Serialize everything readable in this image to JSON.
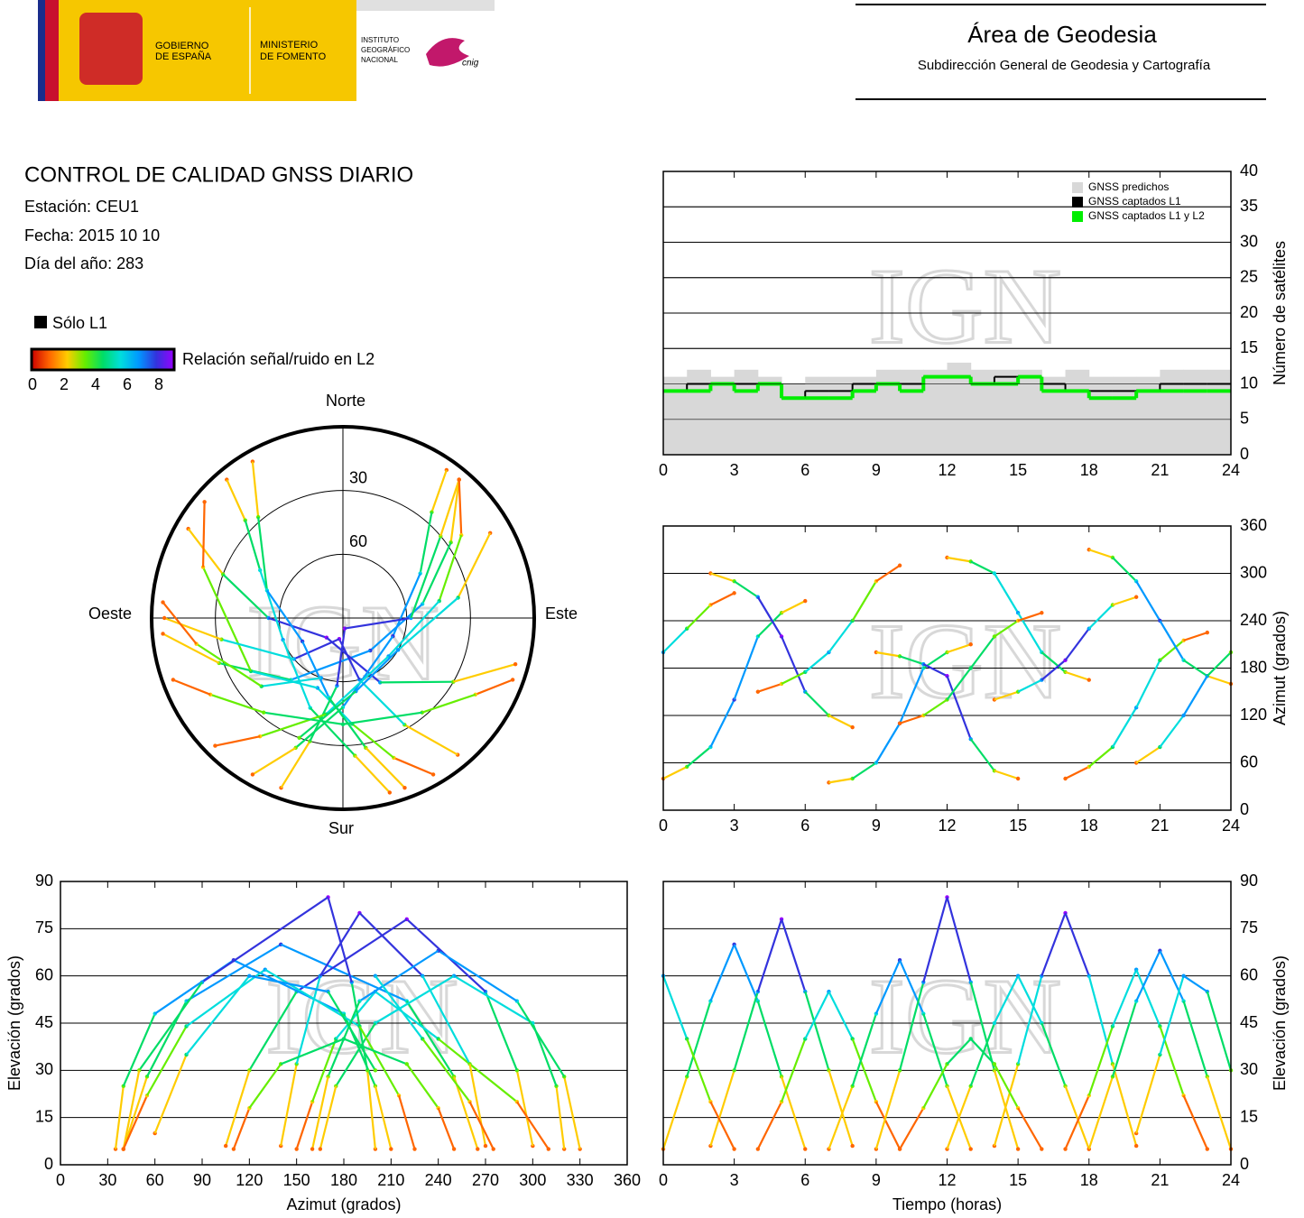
{
  "header": {
    "gov": [
      "GOBIERNO",
      "DE ESPAÑA"
    ],
    "ministry": [
      "MINISTERIO",
      "DE FOMENTO"
    ],
    "institute": [
      "INSTITUTO",
      "GEOGRÁFICO",
      "NACIONAL"
    ],
    "cnig": "cnig",
    "title": "Área de Geodesia",
    "subtitle": "Subdirección General de Geodesia y Cartografía"
  },
  "report": {
    "title": "CONTROL DE CALIDAD GNSS DIARIO",
    "lines": [
      "Estación: CEU1",
      "Fecha: 2015 10 10",
      "Día del año: 283"
    ]
  },
  "legend": {
    "l1_only": "Sólo L1",
    "l1_only_color": "#000000",
    "colorbar_label": "Relación señal/ruido en L2",
    "colorbar_lim": [
      0,
      8
    ],
    "colorbar_ticks": [
      0,
      2,
      4,
      6,
      8
    ],
    "colormap": [
      "#cc0000",
      "#ff6600",
      "#ffcc00",
      "#66ee00",
      "#00dd66",
      "#00dddd",
      "#0099ff",
      "#3333dd",
      "#9900ff"
    ]
  },
  "watermark": "IGN",
  "chart_data": [
    {
      "type": "step",
      "ylabel": "Número de satélites",
      "x": [
        0,
        1,
        2,
        3,
        4,
        5,
        6,
        7,
        8,
        9,
        10,
        11,
        12,
        13,
        14,
        15,
        16,
        17,
        18,
        19,
        20,
        21,
        22,
        23
      ],
      "xlim": [
        0,
        24
      ],
      "xticks": [
        0,
        3,
        6,
        9,
        12,
        15,
        18,
        21,
        24
      ],
      "ylim": [
        0,
        40
      ],
      "yticks": [
        0,
        5,
        10,
        15,
        20,
        25,
        30,
        35,
        40
      ],
      "grid": true,
      "legend": "upper right",
      "series": [
        {
          "name": "GNSS predichos",
          "color": "#d8d8d8",
          "values": [
            11,
            12,
            11,
            12,
            11,
            10,
            11,
            11,
            11,
            12,
            12,
            12,
            13,
            12,
            12,
            12,
            11,
            12,
            11,
            11,
            11,
            12,
            12,
            12
          ]
        },
        {
          "name": "GNSS captados L1",
          "color": "#000000",
          "values": [
            9,
            10,
            10,
            10,
            10,
            8,
            9,
            9,
            10,
            10,
            10,
            11,
            11,
            10,
            11,
            11,
            10,
            9,
            9,
            9,
            9,
            10,
            10,
            10
          ]
        },
        {
          "name": "GNSS captados L1 y L2",
          "color": "#00ee00",
          "values": [
            9,
            9,
            10,
            9,
            10,
            8,
            8,
            8,
            9,
            10,
            9,
            11,
            11,
            10,
            10,
            11,
            9,
            9,
            8,
            8,
            9,
            9,
            9,
            9
          ]
        }
      ]
    },
    {
      "type": "polar",
      "labels": {
        "north": "Norte",
        "south": "Sur",
        "east": "Este",
        "west": "Oeste"
      },
      "rlim": [
        90,
        0
      ],
      "rticks": [
        30,
        60
      ],
      "tracks": [
        {
          "t": [
            0,
            1,
            2,
            3,
            4,
            5,
            6
          ],
          "az": [
            40,
            55,
            80,
            140,
            220,
            250,
            265
          ],
          "el": [
            5,
            28,
            52,
            70,
            52,
            28,
            5
          ],
          "snr": [
            0.5,
            2.8,
            5.2,
            7,
            5.2,
            2.8,
            0.5
          ]
        },
        {
          "t": [
            2,
            3,
            4,
            5,
            6,
            7,
            8
          ],
          "az": [
            300,
            290,
            270,
            220,
            150,
            120,
            105
          ],
          "el": [
            6,
            30,
            55,
            78,
            55,
            30,
            6
          ],
          "snr": [
            0.6,
            3,
            5.5,
            7.8,
            5.5,
            3,
            0.6
          ]
        },
        {
          "t": [
            4,
            5,
            6,
            7,
            8,
            9,
            10
          ],
          "az": [
            150,
            160,
            175,
            200,
            240,
            290,
            310
          ],
          "el": [
            5,
            20,
            40,
            55,
            40,
            20,
            5
          ],
          "snr": [
            0.5,
            2,
            4,
            5.5,
            4,
            2,
            0.5
          ]
        },
        {
          "t": [
            7,
            8,
            9,
            10,
            11,
            12,
            13
          ],
          "az": [
            35,
            40,
            60,
            110,
            180,
            200,
            210
          ],
          "el": [
            5,
            25,
            48,
            65,
            48,
            25,
            5
          ],
          "snr": [
            0.5,
            2.5,
            4.8,
            6.5,
            4.8,
            2.5,
            0.5
          ]
        },
        {
          "t": [
            9,
            10,
            11,
            12,
            13,
            14,
            15
          ],
          "az": [
            200,
            195,
            185,
            170,
            90,
            50,
            40
          ],
          "el": [
            5,
            30,
            58,
            85,
            58,
            30,
            5
          ],
          "snr": [
            0.5,
            3,
            5.8,
            8.5,
            5.8,
            3,
            0.5
          ]
        },
        {
          "t": [
            12,
            13,
            14,
            15,
            16,
            17,
            18
          ],
          "az": [
            320,
            315,
            300,
            250,
            200,
            175,
            165
          ],
          "el": [
            5,
            25,
            45,
            60,
            45,
            25,
            5
          ],
          "snr": [
            0.5,
            2.5,
            4.5,
            6,
            4.5,
            2.5,
            0.5
          ]
        },
        {
          "t": [
            14,
            15,
            16,
            17,
            18,
            19,
            20
          ],
          "az": [
            140,
            150,
            165,
            190,
            230,
            260,
            270
          ],
          "el": [
            6,
            32,
            60,
            80,
            60,
            32,
            6
          ],
          "snr": [
            0.6,
            3.2,
            6,
            8,
            6,
            3.2,
            0.6
          ]
        },
        {
          "t": [
            17,
            18,
            19,
            20,
            21,
            22,
            23
          ],
          "az": [
            40,
            55,
            80,
            130,
            190,
            215,
            225
          ],
          "el": [
            5,
            22,
            44,
            62,
            44,
            22,
            5
          ],
          "snr": [
            0.5,
            2.2,
            4.4,
            6.2,
            4.4,
            2.2,
            0.5
          ]
        },
        {
          "t": [
            18,
            19,
            20,
            21,
            22,
            23,
            24
          ],
          "az": [
            330,
            320,
            290,
            240,
            190,
            170,
            160
          ],
          "el": [
            5,
            28,
            52,
            68,
            52,
            28,
            5
          ],
          "snr": [
            0.5,
            2.8,
            5.2,
            6.8,
            5.2,
            2.8,
            0.5
          ]
        },
        {
          "t": [
            10,
            11,
            12,
            13,
            14,
            15,
            16
          ],
          "az": [
            110,
            120,
            140,
            180,
            220,
            240,
            250
          ],
          "el": [
            5,
            18,
            32,
            40,
            32,
            18,
            5
          ],
          "snr": [
            0.5,
            1.8,
            3.2,
            4,
            3.2,
            1.8,
            0.5
          ]
        },
        {
          "t": [
            20,
            21,
            22,
            23,
            24
          ],
          "az": [
            60,
            80,
            120,
            170,
            200
          ],
          "el": [
            10,
            35,
            60,
            55,
            30
          ],
          "snr": [
            1,
            3.5,
            6,
            5.5,
            3
          ]
        },
        {
          "t": [
            0,
            1,
            2,
            3
          ],
          "az": [
            200,
            230,
            260,
            275
          ],
          "el": [
            60,
            40,
            20,
            5
          ],
          "snr": [
            6,
            4,
            2,
            0.5
          ]
        }
      ]
    },
    {
      "type": "scatter",
      "ylabel": "Azimut (grados)",
      "xlim": [
        0,
        24
      ],
      "xticks": [
        0,
        3,
        6,
        9,
        12,
        15,
        18,
        21,
        24
      ],
      "ylim": [
        0,
        360
      ],
      "yticks": [
        0,
        60,
        120,
        180,
        240,
        300,
        360
      ],
      "grid": true
    },
    {
      "type": "scatter",
      "xlabel": "Azimut (grados)",
      "ylabel": "Elevación (grados)",
      "xlim": [
        0,
        360
      ],
      "xticks": [
        0,
        30,
        60,
        90,
        120,
        150,
        180,
        210,
        240,
        270,
        300,
        330,
        360
      ],
      "ylim": [
        0,
        90
      ],
      "yticks": [
        0,
        15,
        30,
        45,
        60,
        75,
        90
      ],
      "grid": true
    },
    {
      "type": "scatter",
      "xlabel": "Tiempo (horas)",
      "ylabel": "Elevación (grados)",
      "xlim": [
        0,
        24
      ],
      "xticks": [
        0,
        3,
        6,
        9,
        12,
        15,
        18,
        21,
        24
      ],
      "ylim": [
        0,
        90
      ],
      "yticks": [
        0,
        15,
        30,
        45,
        60,
        75,
        90
      ],
      "grid": true
    }
  ]
}
